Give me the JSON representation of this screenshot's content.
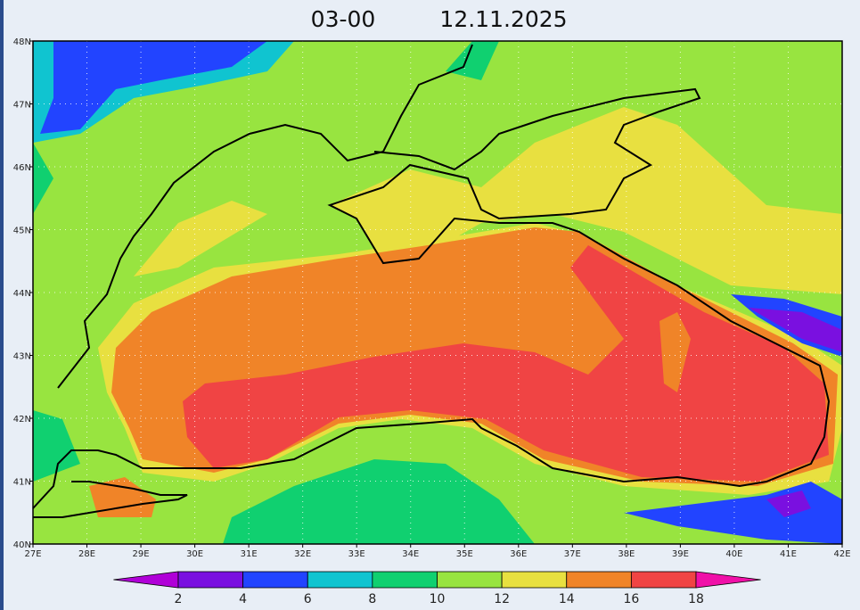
{
  "title": {
    "time": "03-00",
    "date": "12.11.2025"
  },
  "axes": {
    "lat_labels": [
      "48N",
      "47N",
      "46N",
      "45N",
      "44N",
      "43N",
      "42N",
      "41N",
      "40N"
    ],
    "lon_labels": [
      "27E",
      "28E",
      "29E",
      "30E",
      "31E",
      "32E",
      "33E",
      "34E",
      "35E",
      "36E",
      "37E",
      "38E",
      "39E",
      "40E",
      "41E",
      "42E"
    ]
  },
  "colorbar": {
    "labels": [
      "2",
      "4",
      "6",
      "8",
      "10",
      "12",
      "14",
      "16",
      "18"
    ],
    "colors": [
      "#b000d8",
      "#7a10e0",
      "#2244ff",
      "#10c4d0",
      "#10d070",
      "#98e440",
      "#e8e040",
      "#f08428",
      "#f04444",
      "#f010a8"
    ]
  }
}
